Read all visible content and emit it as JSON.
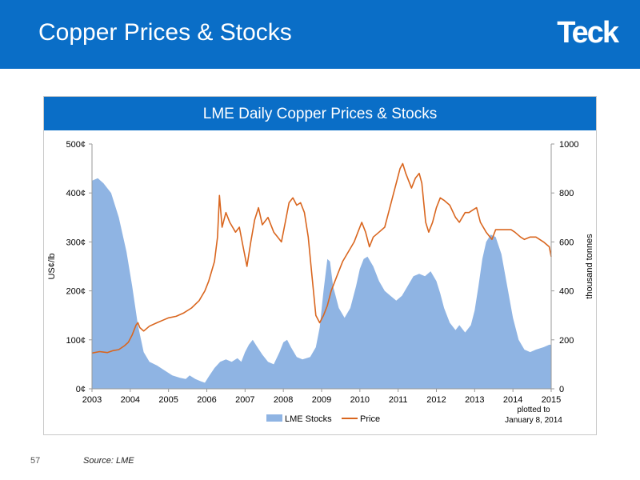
{
  "page": {
    "title": "Copper Prices & Stocks",
    "logo": "Teck",
    "page_number": "57",
    "source": "Source: LME"
  },
  "colors": {
    "header": "#0a6ec7",
    "stocks": "#8fb4e3",
    "price": "#d9661f"
  },
  "chart_data": {
    "type": "line",
    "title": "LME Daily Copper Prices & Stocks",
    "note": [
      "plotted to",
      "January 8, 2014"
    ],
    "y_left": {
      "label": "US¢/lb",
      "range": [
        0,
        500
      ],
      "ticks": [
        0,
        100,
        200,
        300,
        400,
        500
      ],
      "tick_labels": [
        "0¢",
        "100¢",
        "200¢",
        "300¢",
        "400¢",
        "500¢"
      ]
    },
    "y_right": {
      "label": "thousand tonnes",
      "range": [
        0,
        1000
      ],
      "ticks": [
        0,
        200,
        400,
        600,
        800,
        1000
      ],
      "tick_labels": [
        "0",
        "200",
        "400",
        "600",
        "800",
        "1000"
      ]
    },
    "x": {
      "range": [
        2003,
        2015
      ],
      "ticks": [
        2003,
        2004,
        2005,
        2006,
        2007,
        2008,
        2009,
        2010,
        2011,
        2012,
        2013,
        2014,
        2015
      ],
      "tick_labels": [
        "2003",
        "2004",
        "2005",
        "2006",
        "2007",
        "2008",
        "2009",
        "2010",
        "2011",
        "2012",
        "2013",
        "2014",
        "2015"
      ]
    },
    "legend": {
      "position": "bottom",
      "entries": [
        "LME Stocks",
        "Price"
      ]
    },
    "series": [
      {
        "name": "LME Stocks",
        "kind": "area",
        "axis": "right",
        "points": [
          [
            2003.0,
            850
          ],
          [
            2003.15,
            860
          ],
          [
            2003.3,
            840
          ],
          [
            2003.5,
            800
          ],
          [
            2003.7,
            700
          ],
          [
            2003.9,
            560
          ],
          [
            2004.05,
            420
          ],
          [
            2004.2,
            260
          ],
          [
            2004.35,
            150
          ],
          [
            2004.5,
            110
          ],
          [
            2004.7,
            95
          ],
          [
            2004.9,
            75
          ],
          [
            2005.1,
            55
          ],
          [
            2005.3,
            45
          ],
          [
            2005.45,
            40
          ],
          [
            2005.55,
            55
          ],
          [
            2005.7,
            40
          ],
          [
            2005.85,
            30
          ],
          [
            2005.95,
            25
          ],
          [
            2006.05,
            50
          ],
          [
            2006.2,
            85
          ],
          [
            2006.35,
            110
          ],
          [
            2006.5,
            120
          ],
          [
            2006.65,
            110
          ],
          [
            2006.8,
            125
          ],
          [
            2006.9,
            110
          ],
          [
            2007.0,
            150
          ],
          [
            2007.1,
            180
          ],
          [
            2007.2,
            200
          ],
          [
            2007.3,
            175
          ],
          [
            2007.45,
            140
          ],
          [
            2007.6,
            110
          ],
          [
            2007.75,
            100
          ],
          [
            2007.9,
            150
          ],
          [
            2008.0,
            190
          ],
          [
            2008.1,
            200
          ],
          [
            2008.2,
            170
          ],
          [
            2008.35,
            130
          ],
          [
            2008.5,
            120
          ],
          [
            2008.7,
            130
          ],
          [
            2008.85,
            170
          ],
          [
            2008.95,
            250
          ],
          [
            2009.05,
            400
          ],
          [
            2009.15,
            530
          ],
          [
            2009.22,
            520
          ],
          [
            2009.3,
            420
          ],
          [
            2009.45,
            330
          ],
          [
            2009.6,
            290
          ],
          [
            2009.75,
            330
          ],
          [
            2009.9,
            420
          ],
          [
            2010.0,
            490
          ],
          [
            2010.1,
            530
          ],
          [
            2010.2,
            540
          ],
          [
            2010.35,
            500
          ],
          [
            2010.5,
            440
          ],
          [
            2010.65,
            400
          ],
          [
            2010.8,
            380
          ],
          [
            2010.95,
            360
          ],
          [
            2011.1,
            380
          ],
          [
            2011.25,
            420
          ],
          [
            2011.4,
            460
          ],
          [
            2011.55,
            470
          ],
          [
            2011.7,
            460
          ],
          [
            2011.85,
            480
          ],
          [
            2012.0,
            440
          ],
          [
            2012.1,
            390
          ],
          [
            2012.2,
            330
          ],
          [
            2012.35,
            270
          ],
          [
            2012.5,
            240
          ],
          [
            2012.6,
            260
          ],
          [
            2012.75,
            230
          ],
          [
            2012.9,
            260
          ],
          [
            2013.0,
            320
          ],
          [
            2013.1,
            420
          ],
          [
            2013.2,
            530
          ],
          [
            2013.3,
            600
          ],
          [
            2013.42,
            630
          ],
          [
            2013.55,
            620
          ],
          [
            2013.7,
            550
          ],
          [
            2013.85,
            420
          ],
          [
            2014.0,
            290
          ],
          [
            2014.15,
            200
          ],
          [
            2014.3,
            160
          ],
          [
            2014.45,
            150
          ],
          [
            2014.6,
            160
          ],
          [
            2014.8,
            170
          ],
          [
            2014.95,
            180
          ],
          [
            2015.0,
            180
          ]
        ]
      },
      {
        "name": "Price",
        "kind": "line",
        "axis": "left",
        "points": [
          [
            2003.0,
            73
          ],
          [
            2003.2,
            76
          ],
          [
            2003.4,
            74
          ],
          [
            2003.55,
            78
          ],
          [
            2003.7,
            80
          ],
          [
            2003.85,
            88
          ],
          [
            2003.95,
            95
          ],
          [
            2004.05,
            110
          ],
          [
            2004.15,
            130
          ],
          [
            2004.2,
            135
          ],
          [
            2004.25,
            125
          ],
          [
            2004.35,
            118
          ],
          [
            2004.5,
            128
          ],
          [
            2004.7,
            135
          ],
          [
            2004.85,
            140
          ],
          [
            2005.0,
            145
          ],
          [
            2005.2,
            148
          ],
          [
            2005.4,
            155
          ],
          [
            2005.6,
            165
          ],
          [
            2005.8,
            180
          ],
          [
            2005.95,
            200
          ],
          [
            2006.05,
            220
          ],
          [
            2006.2,
            260
          ],
          [
            2006.28,
            310
          ],
          [
            2006.33,
            395
          ],
          [
            2006.4,
            330
          ],
          [
            2006.5,
            360
          ],
          [
            2006.6,
            340
          ],
          [
            2006.75,
            320
          ],
          [
            2006.85,
            330
          ],
          [
            2006.95,
            290
          ],
          [
            2007.05,
            250
          ],
          [
            2007.15,
            300
          ],
          [
            2007.25,
            345
          ],
          [
            2007.35,
            370
          ],
          [
            2007.45,
            335
          ],
          [
            2007.6,
            350
          ],
          [
            2007.75,
            320
          ],
          [
            2007.85,
            310
          ],
          [
            2007.95,
            300
          ],
          [
            2008.05,
            340
          ],
          [
            2008.15,
            380
          ],
          [
            2008.25,
            390
          ],
          [
            2008.35,
            375
          ],
          [
            2008.45,
            380
          ],
          [
            2008.55,
            360
          ],
          [
            2008.65,
            310
          ],
          [
            2008.75,
            230
          ],
          [
            2008.85,
            150
          ],
          [
            2008.95,
            135
          ],
          [
            2009.05,
            150
          ],
          [
            2009.15,
            170
          ],
          [
            2009.25,
            200
          ],
          [
            2009.4,
            230
          ],
          [
            2009.55,
            260
          ],
          [
            2009.7,
            280
          ],
          [
            2009.85,
            300
          ],
          [
            2009.95,
            320
          ],
          [
            2010.05,
            340
          ],
          [
            2010.15,
            320
          ],
          [
            2010.25,
            290
          ],
          [
            2010.35,
            310
          ],
          [
            2010.5,
            320
          ],
          [
            2010.65,
            330
          ],
          [
            2010.75,
            360
          ],
          [
            2010.85,
            390
          ],
          [
            2010.95,
            420
          ],
          [
            2011.05,
            450
          ],
          [
            2011.12,
            460
          ],
          [
            2011.2,
            440
          ],
          [
            2011.35,
            410
          ],
          [
            2011.45,
            430
          ],
          [
            2011.55,
            440
          ],
          [
            2011.62,
            420
          ],
          [
            2011.72,
            340
          ],
          [
            2011.8,
            320
          ],
          [
            2011.9,
            340
          ],
          [
            2012.0,
            370
          ],
          [
            2012.1,
            390
          ],
          [
            2012.2,
            385
          ],
          [
            2012.35,
            375
          ],
          [
            2012.5,
            350
          ],
          [
            2012.6,
            340
          ],
          [
            2012.75,
            360
          ],
          [
            2012.85,
            360
          ],
          [
            2012.95,
            365
          ],
          [
            2013.05,
            370
          ],
          [
            2013.15,
            340
          ],
          [
            2013.3,
            320
          ],
          [
            2013.45,
            305
          ],
          [
            2013.55,
            325
          ],
          [
            2013.7,
            325
          ],
          [
            2013.85,
            325
          ],
          [
            2013.95,
            325
          ],
          [
            2014.05,
            320
          ],
          [
            2014.2,
            310
          ],
          [
            2014.3,
            305
          ],
          [
            2014.45,
            310
          ],
          [
            2014.6,
            310
          ],
          [
            2014.8,
            300
          ],
          [
            2014.95,
            290
          ],
          [
            2015.0,
            270
          ]
        ]
      }
    ]
  }
}
